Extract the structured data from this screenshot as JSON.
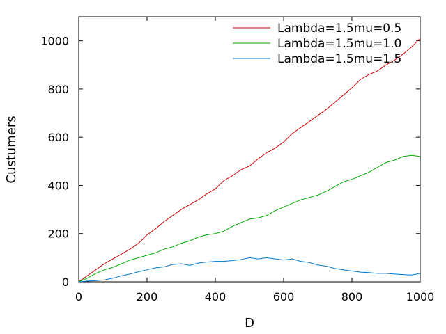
{
  "chart_data": {
    "type": "line",
    "title": "",
    "xlabel": "D",
    "ylabel": "Custumers",
    "xlim": [
      0,
      1000
    ],
    "ylim": [
      0,
      1100
    ],
    "xticks": [
      0,
      200,
      400,
      600,
      800,
      1000
    ],
    "yticks": [
      0,
      200,
      400,
      600,
      800,
      1000
    ],
    "xtick_labels": [
      "0",
      "200",
      "400",
      "600",
      "800",
      "1000"
    ],
    "ytick_labels": [
      "0",
      "200",
      "400",
      "600",
      "800",
      "1000"
    ],
    "grid": false,
    "legend_position": "top-right",
    "series": [
      {
        "name": "Lambda=1.5mu=0.5",
        "color": "#cc0000",
        "x": [
          0,
          25,
          50,
          75,
          100,
          125,
          150,
          175,
          200,
          225,
          250,
          275,
          300,
          325,
          350,
          375,
          400,
          425,
          450,
          475,
          500,
          525,
          550,
          575,
          600,
          625,
          650,
          675,
          700,
          725,
          750,
          775,
          800,
          825,
          850,
          875,
          900,
          925,
          950,
          975,
          1000
        ],
        "y": [
          0,
          25,
          50,
          75,
          95,
          115,
          135,
          160,
          195,
          220,
          250,
          275,
          300,
          320,
          340,
          365,
          385,
          420,
          440,
          465,
          480,
          510,
          535,
          555,
          580,
          615,
          640,
          665,
          690,
          715,
          745,
          775,
          805,
          840,
          860,
          875,
          900,
          920,
          945,
          975,
          1010
        ]
      },
      {
        "name": "Lambda=1.5mu=1.0",
        "color": "#00aa00",
        "x": [
          0,
          25,
          50,
          75,
          100,
          125,
          150,
          175,
          200,
          225,
          250,
          275,
          300,
          325,
          350,
          375,
          400,
          425,
          450,
          475,
          500,
          525,
          550,
          575,
          600,
          625,
          650,
          675,
          700,
          725,
          750,
          775,
          800,
          825,
          850,
          875,
          900,
          925,
          950,
          975,
          1000
        ],
        "y": [
          0,
          15,
          35,
          50,
          60,
          75,
          90,
          100,
          110,
          120,
          135,
          145,
          160,
          170,
          185,
          195,
          200,
          210,
          230,
          245,
          260,
          265,
          275,
          295,
          310,
          325,
          340,
          350,
          360,
          375,
          395,
          415,
          425,
          440,
          455,
          475,
          495,
          505,
          520,
          525,
          520
        ]
      },
      {
        "name": "Lambda=1.5mu=1.5",
        "color": "#0077cc",
        "x": [
          0,
          25,
          50,
          75,
          100,
          125,
          150,
          175,
          200,
          225,
          250,
          275,
          300,
          325,
          350,
          375,
          400,
          425,
          450,
          475,
          500,
          525,
          550,
          575,
          600,
          625,
          650,
          675,
          700,
          725,
          750,
          775,
          800,
          825,
          850,
          875,
          900,
          925,
          950,
          975,
          1000
        ],
        "y": [
          0,
          3,
          5,
          8,
          15,
          25,
          32,
          42,
          50,
          58,
          62,
          72,
          75,
          68,
          78,
          82,
          85,
          85,
          88,
          92,
          100,
          95,
          100,
          95,
          90,
          95,
          85,
          80,
          70,
          65,
          55,
          50,
          45,
          40,
          38,
          35,
          35,
          32,
          30,
          28,
          35
        ]
      }
    ]
  }
}
